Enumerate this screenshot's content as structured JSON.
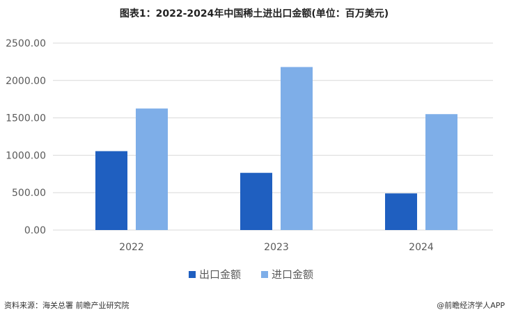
{
  "chart_data": {
    "type": "bar",
    "title": "图表1：2022-2024年中国稀土进出口金额(单位：百万美元)",
    "categories": [
      "2022",
      "2023",
      "2024"
    ],
    "series": [
      {
        "name": "出口金额",
        "values": [
          1055,
          765,
          490
        ],
        "color": "#1f5fc0"
      },
      {
        "name": "进口金额",
        "values": [
          1625,
          2180,
          1550
        ],
        "color": "#7eaee8"
      }
    ],
    "ylim": [
      0,
      2500
    ],
    "yticks": [
      "0.00",
      "500.00",
      "1000.00",
      "1500.00",
      "2000.00",
      "2500.00"
    ],
    "grid": true,
    "legend": "bottom"
  },
  "footer": {
    "source": "资料来源：海关总署 前瞻产业研究院",
    "credit": "@前瞻经济学人APP"
  }
}
